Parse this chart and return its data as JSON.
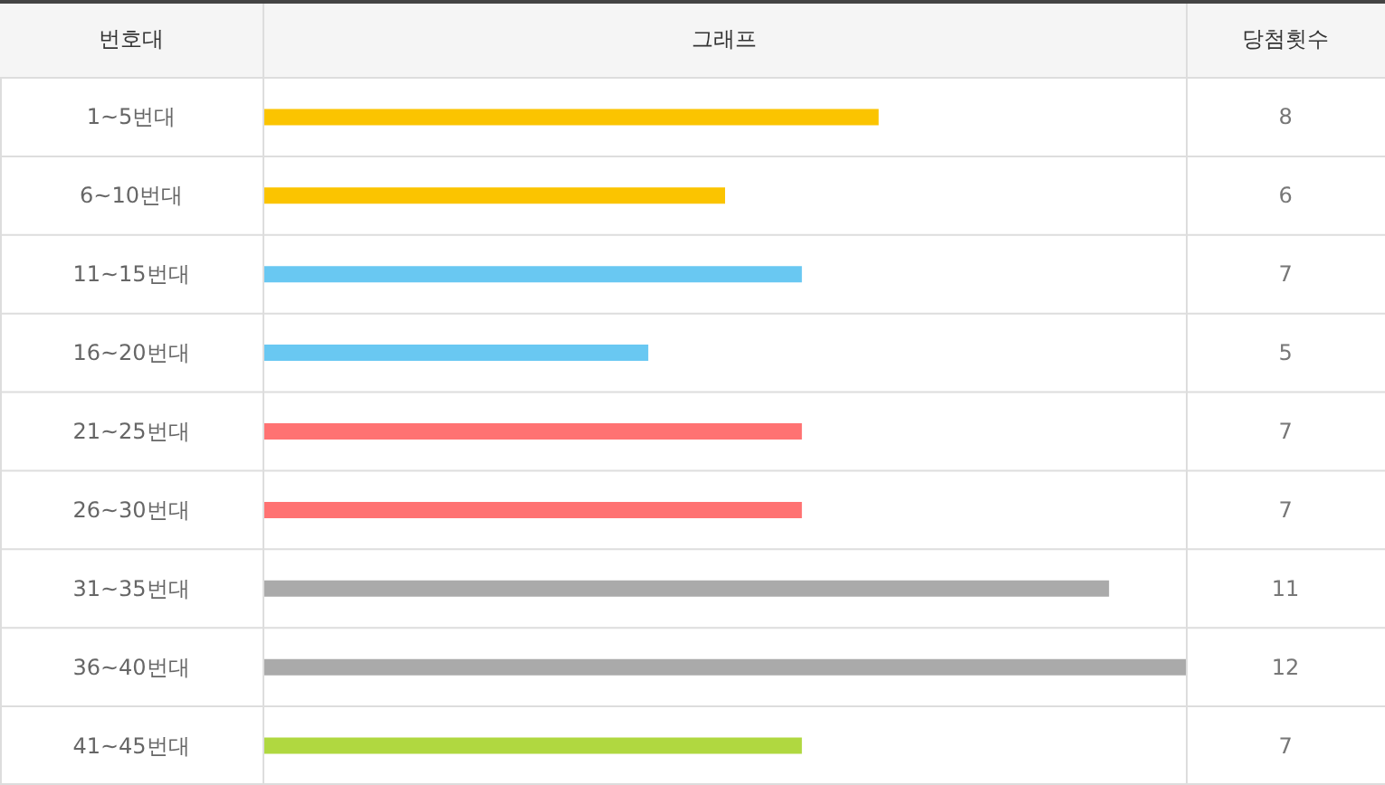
{
  "chart_data": {
    "type": "bar",
    "orientation": "horizontal",
    "ylabel": "번호대",
    "xlabel": "그래프",
    "annotations": [
      "당첨횟수"
    ],
    "categories": [
      "1~5번대",
      "6~10번대",
      "11~15번대",
      "16~20번대",
      "21~25번대",
      "26~30번대",
      "31~35번대",
      "36~40번대",
      "41~45번대"
    ],
    "values": [
      8,
      6,
      7,
      5,
      7,
      7,
      11,
      12,
      7
    ],
    "colors": [
      "#fbc400",
      "#fbc400",
      "#69c8f2",
      "#69c8f2",
      "#ff7272",
      "#ff7272",
      "#aaaaaa",
      "#aaaaaa",
      "#b0d840"
    ],
    "xlim": [
      0,
      12
    ],
    "data_labels": true
  }
}
